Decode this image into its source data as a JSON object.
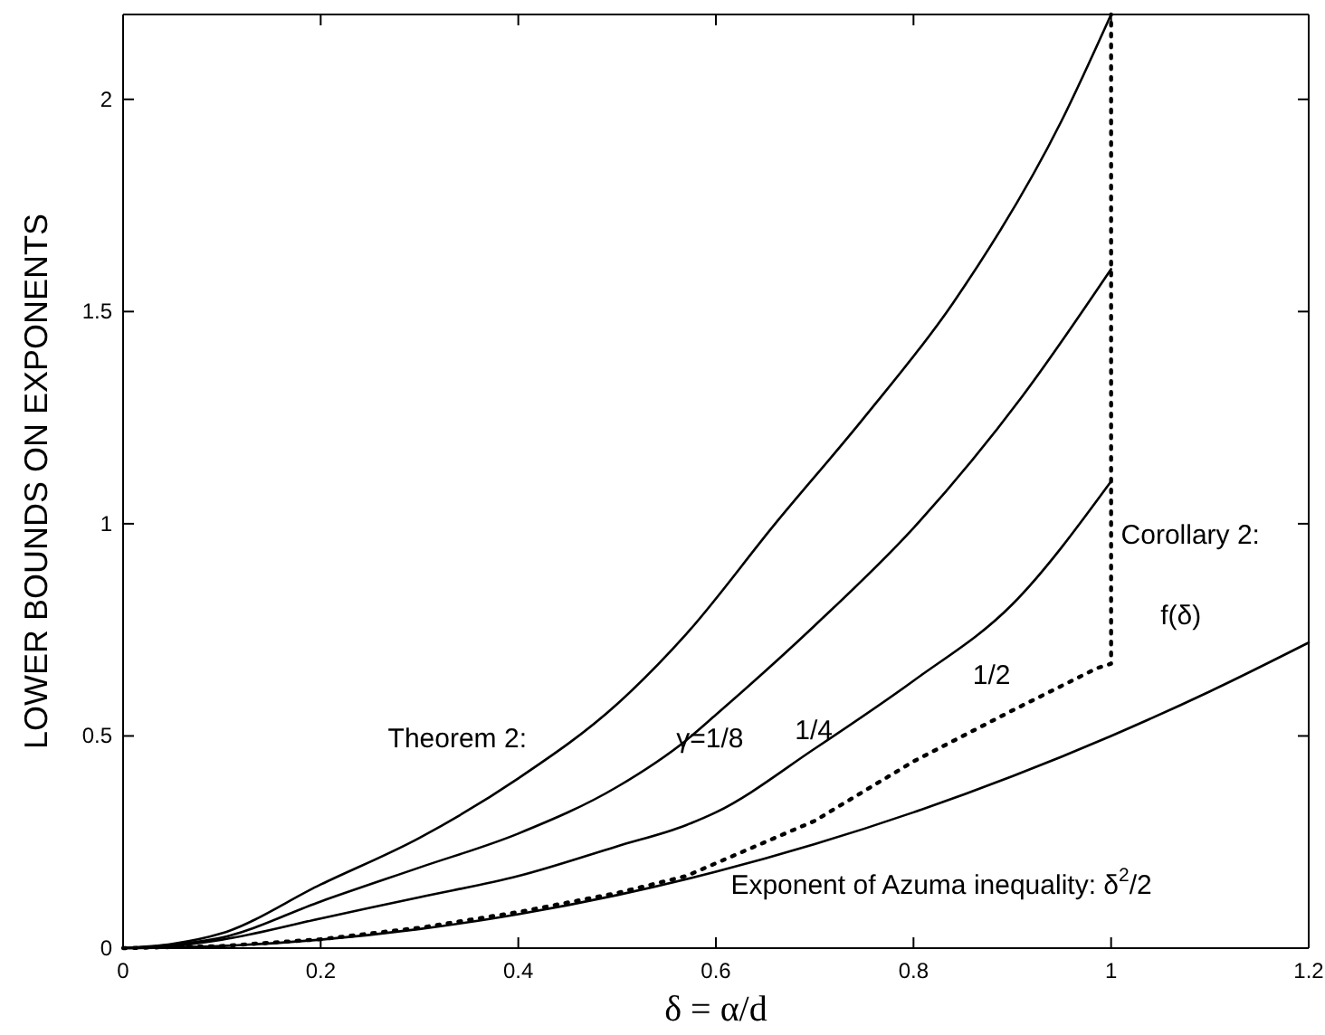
{
  "chart_data": {
    "type": "line",
    "xlabel": "δ = α/d",
    "ylabel": "LOWER BOUNDS ON EXPONENTS",
    "xlim": [
      0,
      1.2
    ],
    "ylim": [
      0,
      2.2
    ],
    "xticks": [
      0,
      0.2,
      0.4,
      0.6,
      0.8,
      1,
      1.2
    ],
    "yticks": [
      0,
      0.5,
      1,
      1.5,
      2
    ],
    "grid": false,
    "marker": "none",
    "series": [
      {
        "color": "#000000",
        "line_style": "solid",
        "x": [
          0,
          0.05,
          0.1,
          0.2,
          0.3,
          0.4,
          0.5,
          0.57,
          0.66,
          0.75,
          0.84,
          0.95,
          1
        ],
        "values": [
          0,
          0.01,
          0.035,
          0.15,
          0.26,
          0.4,
          0.575,
          0.74,
          1.0,
          1.25,
          1.52,
          1.95,
          2.2
        ]
      },
      {
        "color": "#000000",
        "line_style": "solid",
        "x": [
          0,
          0.05,
          0.1,
          0.2,
          0.3,
          0.4,
          0.5,
          0.57,
          0.6,
          0.7,
          0.8,
          0.91,
          1
        ],
        "values": [
          0,
          0.008,
          0.025,
          0.11,
          0.19,
          0.27,
          0.38,
          0.49,
          0.55,
          0.76,
          0.99,
          1.3,
          1.6
        ]
      },
      {
        "color": "#000000",
        "line_style": "solid",
        "x": [
          0,
          0.05,
          0.1,
          0.2,
          0.3,
          0.4,
          0.5,
          0.57,
          0.6,
          0.7,
          0.8,
          0.9,
          1
        ],
        "values": [
          0,
          0.005,
          0.02,
          0.07,
          0.12,
          0.17,
          0.24,
          0.29,
          0.32,
          0.47,
          0.63,
          0.81,
          1.1
        ]
      },
      {
        "color": "#000000",
        "line_style": "dotted",
        "x": [
          0,
          0.1,
          0.2,
          0.3,
          0.4,
          0.5,
          0.57,
          0.7,
          0.8,
          0.9,
          0.986,
          1,
          1
        ],
        "values": [
          0,
          0.005,
          0.021,
          0.048,
          0.085,
          0.13,
          0.17,
          0.3,
          0.44,
          0.56,
          0.66,
          0.67,
          2.2
        ]
      },
      {
        "color": "#000000",
        "line_style": "solid",
        "x": [
          0,
          0.1,
          0.2,
          0.3,
          0.4,
          0.5,
          0.6,
          0.7,
          0.8,
          0.9,
          1,
          1.1,
          1.2
        ],
        "values": [
          0,
          0.005,
          0.02,
          0.045,
          0.08,
          0.125,
          0.18,
          0.245,
          0.32,
          0.405,
          0.5,
          0.605,
          0.72
        ]
      }
    ],
    "annotations": [
      "Theorem 2:",
      "γ=1/8",
      "1/4",
      "1/2",
      "Corollary 2:",
      "f(δ)",
      "Exponent of Azuma inequality: δ$^{2}$/2"
    ]
  }
}
